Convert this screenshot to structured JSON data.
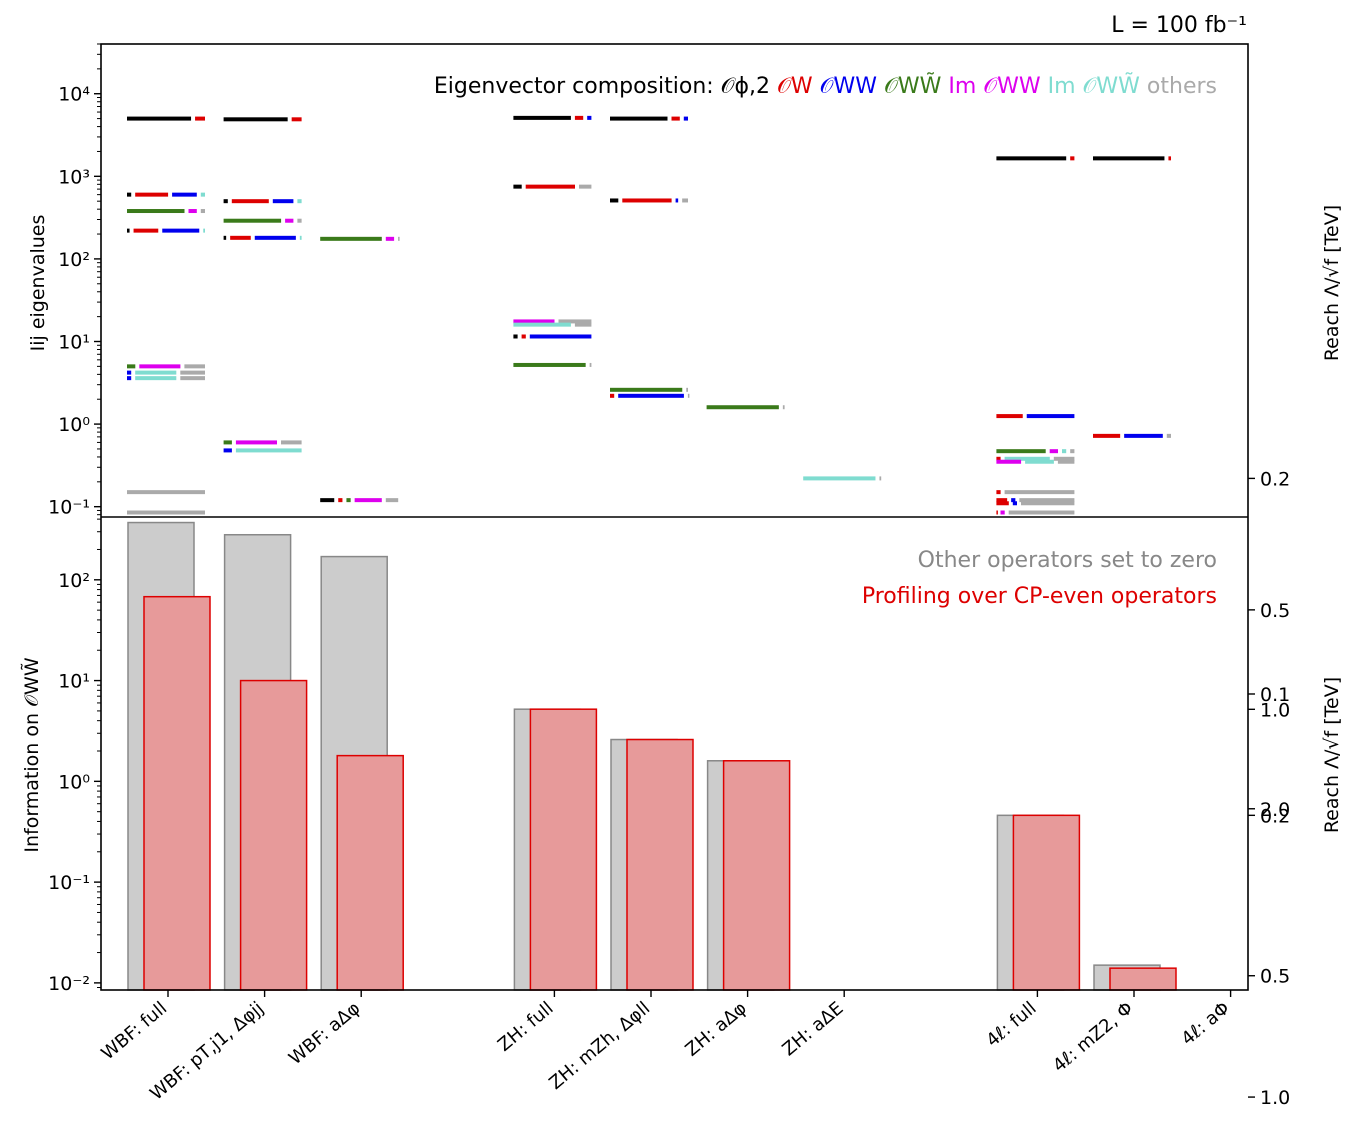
{
  "lumi_label": "L = 100 fb⁻¹",
  "colors": {
    "phi2": "#000000",
    "W": "#dd0000",
    "WW": "#0000ee",
    "WWtilde": "#3a7a1a",
    "ImWW": "#dd00ee",
    "ImWWtilde": "#7fdcd0",
    "others": "#aaaaaa",
    "bar_grey_fill": "#cccccc",
    "bar_grey_edge": "#888888",
    "bar_red_fill": "#e79a9a",
    "bar_red_edge": "#dd0000"
  },
  "categories": [
    "WBF: full",
    "WBF: pT,j1, Δφjj",
    "WBF: aΔφ",
    "ZH: full",
    "ZH: mZh, Δφll",
    "ZH: aΔφ",
    "ZH: aΔE",
    "4ℓ: full",
    "4ℓ: mZ2, Φ",
    "4ℓ: aΦ"
  ],
  "chart_data": [
    {
      "type": "eigenvalue-levels",
      "ylabel": "Iij eigenvalues",
      "y2label": "Reach Λ/√f [TeV]",
      "yscale": "log",
      "ylim": [
        0.075,
        40000
      ],
      "yticks": [
        "10⁻¹",
        "10⁰",
        "10¹",
        "10²",
        "10³",
        "10⁴"
      ],
      "y2ticks": [
        2.0,
        1.0,
        0.5,
        0.2
      ],
      "legend": {
        "prefix": "Eigenvector composition:",
        "entries": [
          {
            "key": "phi2",
            "label": "𝒪ϕ,2"
          },
          {
            "key": "W",
            "label": "𝒪W"
          },
          {
            "key": "WW",
            "label": "𝒪WW"
          },
          {
            "key": "WWtilde",
            "label": "𝒪WW̃"
          },
          {
            "key": "ImWW",
            "label": "Im 𝒪WW"
          },
          {
            "key": "ImWWtilde",
            "label": "Im 𝒪WW̃"
          },
          {
            "key": "others",
            "label": "others"
          }
        ]
      },
      "levels": [
        {
          "category": 0,
          "value": 5000,
          "composition": [
            [
              "phi2",
              0.83
            ],
            [
              "W",
              0.17
            ]
          ]
        },
        {
          "category": 0,
          "value": 600,
          "composition": [
            [
              "phi2",
              0.1
            ],
            [
              "W",
              0.45
            ],
            [
              "WW",
              0.35
            ],
            [
              "ImWWtilde",
              0.1
            ]
          ]
        },
        {
          "category": 0,
          "value": 380,
          "composition": [
            [
              "WWtilde",
              0.75
            ],
            [
              "ImWW",
              0.15
            ],
            [
              "others",
              0.1
            ]
          ]
        },
        {
          "category": 0,
          "value": 220,
          "composition": [
            [
              "phi2",
              0.08
            ],
            [
              "W",
              0.35
            ],
            [
              "WW",
              0.5
            ],
            [
              "ImWWtilde",
              0.07
            ]
          ]
        },
        {
          "category": 0,
          "value": 5.0,
          "composition": [
            [
              "WWtilde",
              0.15
            ],
            [
              "ImWW",
              0.55
            ],
            [
              "others",
              0.3
            ]
          ]
        },
        {
          "category": 0,
          "value": 4.2,
          "composition": [
            [
              "WW",
              0.1
            ],
            [
              "ImWWtilde",
              0.55
            ],
            [
              "others",
              0.35
            ]
          ]
        },
        {
          "category": 0,
          "value": 3.6,
          "composition": [
            [
              "WW",
              0.1
            ],
            [
              "ImWWtilde",
              0.55
            ],
            [
              "others",
              0.35
            ]
          ]
        },
        {
          "category": 0,
          "value": 0.15,
          "composition": [
            [
              "others",
              1.0
            ]
          ]
        },
        {
          "category": 0,
          "value": 0.085,
          "composition": [
            [
              "others",
              1.0
            ]
          ]
        },
        {
          "category": 1,
          "value": 4900,
          "composition": [
            [
              "phi2",
              0.83
            ],
            [
              "W",
              0.17
            ]
          ]
        },
        {
          "category": 1,
          "value": 500,
          "composition": [
            [
              "phi2",
              0.1
            ],
            [
              "W",
              0.5
            ],
            [
              "WW",
              0.3
            ],
            [
              "ImWWtilde",
              0.1
            ]
          ]
        },
        {
          "category": 1,
          "value": 290,
          "composition": [
            [
              "WWtilde",
              0.75
            ],
            [
              "ImWW",
              0.15
            ],
            [
              "others",
              0.1
            ]
          ]
        },
        {
          "category": 1,
          "value": 180,
          "composition": [
            [
              "phi2",
              0.08
            ],
            [
              "W",
              0.3
            ],
            [
              "WW",
              0.55
            ],
            [
              "ImWWtilde",
              0.07
            ]
          ]
        },
        {
          "category": 1,
          "value": 0.6,
          "composition": [
            [
              "WWtilde",
              0.15
            ],
            [
              "ImWW",
              0.55
            ],
            [
              "others",
              0.3
            ]
          ]
        },
        {
          "category": 1,
          "value": 0.48,
          "composition": [
            [
              "WW",
              0.15
            ],
            [
              "ImWWtilde",
              0.85
            ]
          ]
        },
        {
          "category": 2,
          "value": 175,
          "composition": [
            [
              "WWtilde",
              0.8
            ],
            [
              "ImWW",
              0.15
            ],
            [
              "others",
              0.05
            ]
          ]
        },
        {
          "category": 2,
          "value": 0.12,
          "composition": [
            [
              "phi2",
              0.22
            ],
            [
              "W",
              0.1
            ],
            [
              "WWtilde",
              0.1
            ],
            [
              "ImWW",
              0.38
            ],
            [
              "others",
              0.2
            ]
          ]
        },
        {
          "category": 3,
          "value": 5100,
          "composition": [
            [
              "phi2",
              0.75
            ],
            [
              "W",
              0.15
            ],
            [
              "WW",
              0.1
            ]
          ]
        },
        {
          "category": 3,
          "value": 750,
          "composition": [
            [
              "phi2",
              0.15
            ],
            [
              "W",
              0.65
            ],
            [
              "others",
              0.2
            ]
          ]
        },
        {
          "category": 3,
          "value": 17.5,
          "composition": [
            [
              "ImWW",
              0.55
            ],
            [
              "others",
              0.45
            ]
          ]
        },
        {
          "category": 3,
          "value": 16.0,
          "composition": [
            [
              "ImWWtilde",
              0.75
            ],
            [
              "others",
              0.25
            ]
          ]
        },
        {
          "category": 3,
          "value": 11.5,
          "composition": [
            [
              "phi2",
              0.1
            ],
            [
              "W",
              0.1
            ],
            [
              "WW",
              0.8
            ]
          ]
        },
        {
          "category": 3,
          "value": 5.2,
          "composition": [
            [
              "WWtilde",
              0.93
            ],
            [
              "others",
              0.07
            ]
          ]
        },
        {
          "category": 4,
          "value": 5000,
          "composition": [
            [
              "phi2",
              0.75
            ],
            [
              "W",
              0.15
            ],
            [
              "WW",
              0.1
            ]
          ]
        },
        {
          "category": 4,
          "value": 510,
          "composition": [
            [
              "phi2",
              0.15
            ],
            [
              "W",
              0.65
            ],
            [
              "WW",
              0.08
            ],
            [
              "others",
              0.12
            ]
          ]
        },
        {
          "category": 4,
          "value": 2.6,
          "composition": [
            [
              "WWtilde",
              0.93
            ],
            [
              "others",
              0.07
            ]
          ]
        },
        {
          "category": 4,
          "value": 2.2,
          "composition": [
            [
              "W",
              0.1
            ],
            [
              "WW",
              0.85
            ],
            [
              "others",
              0.05
            ]
          ]
        },
        {
          "category": 5,
          "value": 1.6,
          "composition": [
            [
              "WWtilde",
              0.93
            ],
            [
              "others",
              0.07
            ]
          ]
        },
        {
          "category": 6,
          "value": 0.22,
          "composition": [
            [
              "ImWWtilde",
              0.93
            ],
            [
              "others",
              0.07
            ]
          ]
        },
        {
          "category": 7,
          "value": 1650,
          "composition": [
            [
              "phi2",
              0.9
            ],
            [
              "W",
              0.1
            ]
          ]
        },
        {
          "category": 7,
          "value": 1.25,
          "composition": [
            [
              "W",
              0.37
            ],
            [
              "WW",
              0.63
            ]
          ]
        },
        {
          "category": 7,
          "value": 0.47,
          "composition": [
            [
              "WWtilde",
              0.65
            ],
            [
              "ImWW",
              0.15
            ],
            [
              "ImWWtilde",
              0.1
            ],
            [
              "others",
              0.1
            ]
          ]
        },
        {
          "category": 7,
          "value": 0.38,
          "composition": [
            [
              "W",
              0.1
            ],
            [
              "ImWWtilde",
              0.6
            ],
            [
              "others",
              0.3
            ]
          ]
        },
        {
          "category": 7,
          "value": 0.35,
          "composition": [
            [
              "ImWW",
              0.35
            ],
            [
              "ImWWtilde",
              0.4
            ],
            [
              "others",
              0.25
            ]
          ]
        },
        {
          "category": 7,
          "value": 0.15,
          "composition": [
            [
              "W",
              0.1
            ],
            [
              "others",
              0.9
            ]
          ]
        },
        {
          "category": 7,
          "value": 0.12,
          "composition": [
            [
              "W",
              0.18
            ],
            [
              "WW",
              0.1
            ],
            [
              "others",
              0.72
            ]
          ]
        },
        {
          "category": 7,
          "value": 0.11,
          "composition": [
            [
              "W",
              0.2
            ],
            [
              "WW",
              0.1
            ],
            [
              "others",
              0.7
            ]
          ]
        },
        {
          "category": 7,
          "value": 0.085,
          "composition": [
            [
              "W",
              0.05
            ],
            [
              "ImWW",
              0.1
            ],
            [
              "others",
              0.85
            ]
          ]
        },
        {
          "category": 8,
          "value": 1650,
          "composition": [
            [
              "phi2",
              0.92
            ],
            [
              "W",
              0.08
            ]
          ]
        },
        {
          "category": 8,
          "value": 0.72,
          "composition": [
            [
              "W",
              0.38
            ],
            [
              "WW",
              0.52
            ],
            [
              "others",
              0.1
            ]
          ]
        }
      ]
    },
    {
      "type": "bar",
      "ylabel": "Information on 𝒪WW̃",
      "y2label": "Reach Λ/√f [TeV]",
      "yscale": "log",
      "ylim": [
        0.0085,
        420
      ],
      "yticks": [
        "10⁻²",
        "10⁻¹",
        "10⁰",
        "10¹",
        "10²"
      ],
      "y2ticks": [
        1.0,
        0.5,
        0.2,
        0.1
      ],
      "series": [
        {
          "name": "Other operators set to zero",
          "values": [
            370,
            280,
            170,
            5.2,
            2.6,
            1.6,
            null,
            0.46,
            0.015,
            null
          ]
        },
        {
          "name": "Profiling over CP-even operators",
          "values": [
            68,
            10,
            1.8,
            5.2,
            2.6,
            1.6,
            null,
            0.46,
            0.014,
            null
          ]
        }
      ]
    }
  ]
}
